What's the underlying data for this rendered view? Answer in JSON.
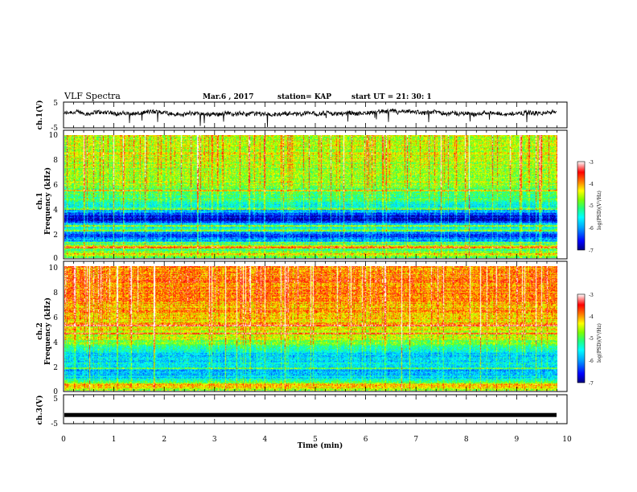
{
  "header": {
    "title": "VLF Spectra",
    "date": "Mar.6  , 2017",
    "station": "station= KAP",
    "start": "start  UT  =   21: 30: 1"
  },
  "chart_data": [
    {
      "type": "line",
      "panel": "ch1-waveform",
      "ylabel": "ch.1(V)",
      "ylim": [
        -5,
        5
      ],
      "yticks": [
        "5",
        "-5"
      ],
      "xlim": [
        0,
        10
      ],
      "trace_mean_level": 0.6,
      "color": "#000000"
    },
    {
      "type": "heatmap",
      "panel": "ch1-spectrogram",
      "ylabel": "ch.1\nFrequency  (kHz)",
      "ylim": [
        0,
        10
      ],
      "yticks": [
        "0",
        "2",
        "4",
        "6",
        "8",
        "10"
      ],
      "xlim": [
        0,
        9.8
      ],
      "colorbar": {
        "label": "log(PSD)(V²/Hz)",
        "range": [
          -7,
          -3
        ],
        "ticks": [
          "-3",
          "-4",
          "-5",
          "-6",
          "-7"
        ]
      },
      "freq_profile_logpsd": [
        [
          0.0,
          -5.0
        ],
        [
          0.3,
          -4.2
        ],
        [
          0.6,
          -5.2
        ],
        [
          0.9,
          -4.3
        ],
        [
          1.2,
          -5.6
        ],
        [
          1.6,
          -6.2
        ],
        [
          1.9,
          -6.5
        ],
        [
          2.1,
          -5.8
        ],
        [
          2.3,
          -5.2
        ],
        [
          2.6,
          -5.6
        ],
        [
          2.9,
          -6.3
        ],
        [
          3.1,
          -6.7
        ],
        [
          3.4,
          -6.6
        ],
        [
          3.7,
          -6.1
        ],
        [
          4.0,
          -5.6
        ],
        [
          4.5,
          -5.3
        ],
        [
          5.0,
          -5.1
        ],
        [
          5.5,
          -4.9
        ],
        [
          6.0,
          -4.8
        ],
        [
          7.0,
          -4.6
        ],
        [
          8.0,
          -4.5
        ],
        [
          9.0,
          -4.5
        ],
        [
          10.0,
          -4.5
        ]
      ],
      "lines_khz": [
        0.8,
        1.2,
        2.2,
        2.6,
        4.0,
        5.5
      ]
    },
    {
      "type": "heatmap",
      "panel": "ch2-spectrogram",
      "ylabel": "ch.2\nFrequency  (kHz)",
      "ylim": [
        0,
        10
      ],
      "yticks": [
        "0",
        "2",
        "4",
        "6",
        "8",
        "10"
      ],
      "xlim": [
        0,
        9.8
      ],
      "colorbar": {
        "label": "log(PSD)(V²/Hz)",
        "range": [
          -7,
          -3
        ],
        "ticks": [
          "-3",
          "-4",
          "-5",
          "-6",
          "-7"
        ]
      },
      "freq_profile_logpsd": [
        [
          0.0,
          -4.6
        ],
        [
          0.4,
          -4.0
        ],
        [
          0.8,
          -5.3
        ],
        [
          1.2,
          -5.8
        ],
        [
          1.6,
          -6.0
        ],
        [
          2.0,
          -5.4
        ],
        [
          2.4,
          -5.6
        ],
        [
          2.8,
          -5.7
        ],
        [
          3.2,
          -5.5
        ],
        [
          3.6,
          -5.0
        ],
        [
          4.0,
          -4.7
        ],
        [
          4.5,
          -4.5
        ],
        [
          5.0,
          -4.3
        ],
        [
          6.0,
          -4.1
        ],
        [
          7.0,
          -4.0
        ],
        [
          8.0,
          -3.9
        ],
        [
          9.0,
          -3.9
        ],
        [
          10.0,
          -3.9
        ]
      ],
      "lines_khz": [
        1.8,
        4.6,
        5.2
      ]
    },
    {
      "type": "line",
      "panel": "ch3-waveform",
      "ylabel": "ch.3(V)",
      "ylim": [
        -5,
        5
      ],
      "yticks": [
        "5",
        "-5"
      ],
      "xlim": [
        0,
        10
      ],
      "trace_level": -2,
      "color": "#000000"
    }
  ],
  "xaxis": {
    "label": "Time  (min)",
    "ticks": [
      "0",
      "1",
      "2",
      "3",
      "4",
      "5",
      "6",
      "7",
      "8",
      "9",
      "10"
    ]
  },
  "colors": {
    "colormap": [
      "#000080",
      "#0000ff",
      "#00a0ff",
      "#00ffff",
      "#20ff80",
      "#80ff00",
      "#ffff00",
      "#ff8000",
      "#ff0000",
      "#ffffff"
    ]
  }
}
